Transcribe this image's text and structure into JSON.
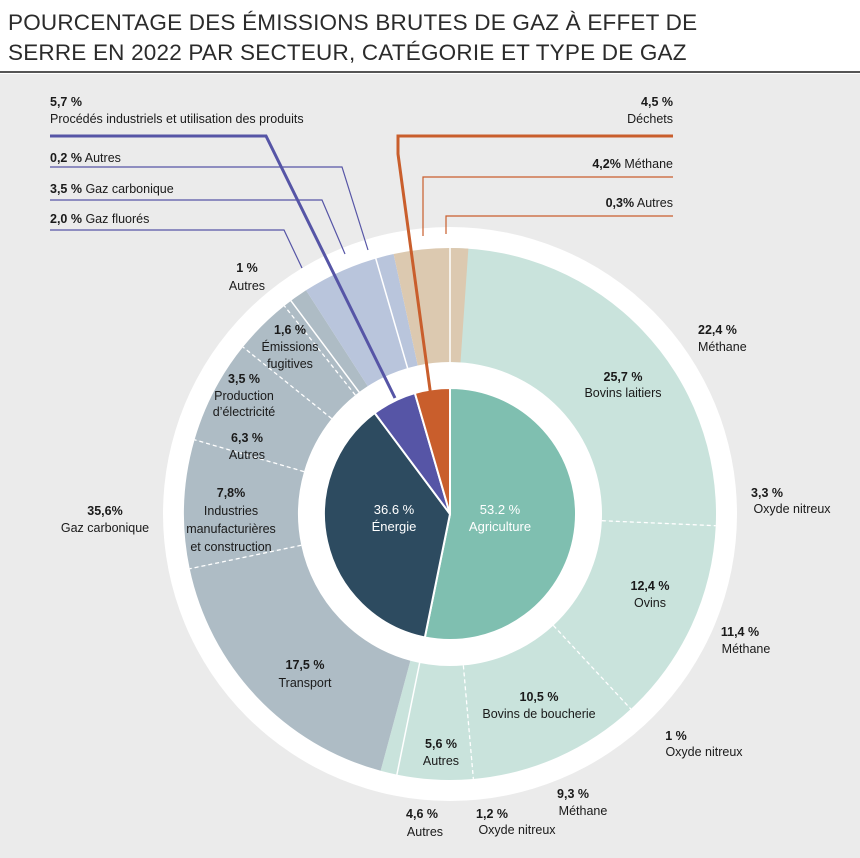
{
  "title_line1": "POURCENTAGE DES ÉMISSIONS BRUTES DE GAZ À EFFET DE",
  "title_line2": "SERRE EN 2022 PAR SECTEUR, CATÉGORIE ET TYPE DE GAZ",
  "colors": {
    "agriculture_inner": "#7fbfb0",
    "agriculture_middle": "#c9e3dc",
    "agriculture_outer": "#82c3b3",
    "energie_inner": "#2d4b60",
    "energie_middle": "#aebcc5",
    "energie_outer": "#2d4b60",
    "procedes": "#5655a6",
    "procedes_middle": "#b9c5dc",
    "dechets": "#c95e2c",
    "dechets_middle": "#dcc9b0"
  },
  "chart_data": {
    "type": "pie",
    "sectors": [
      {
        "name": "Agriculture",
        "value": 53.2,
        "label": "53.2 %"
      },
      {
        "name": "Énergie",
        "value": 36.6,
        "label": "36.6 %"
      },
      {
        "name": "Procédés industriels et utilisation des produits",
        "value": 5.7,
        "label": "5,7 %"
      },
      {
        "name": "Déchets",
        "value": 4.5,
        "label": "4,5 %"
      }
    ],
    "categories": [
      {
        "sector": "Agriculture",
        "name": "Bovins laitiers",
        "value": 25.7,
        "label": "25,7 %"
      },
      {
        "sector": "Agriculture",
        "name": "Ovins",
        "value": 12.4,
        "label": "12,4 %"
      },
      {
        "sector": "Agriculture",
        "name": "Bovins de boucherie",
        "value": 10.5,
        "label": "10,5 %"
      },
      {
        "sector": "Agriculture",
        "name": "Autres",
        "value": 5.6,
        "label": "5,6 %"
      },
      {
        "sector": "Énergie",
        "name": "Transport",
        "value": 17.5,
        "label": "17,5 %"
      },
      {
        "sector": "Énergie",
        "name": "Industries manufacturières et construction",
        "value": 7.8,
        "label": "7,8%"
      },
      {
        "sector": "Énergie",
        "name": "Autres",
        "value": 6.3,
        "label": "6,3 %"
      },
      {
        "sector": "Énergie",
        "name": "Production d’électricité",
        "value": 3.5,
        "label": "3,5 %"
      },
      {
        "sector": "Énergie",
        "name": "Émissions fugitives",
        "value": 1.6,
        "label": "1,6 %"
      },
      {
        "sector": "Procédés industriels et utilisation des produits",
        "name": "",
        "value": 5.7,
        "label": ""
      },
      {
        "sector": "Déchets",
        "name": "",
        "value": 4.5,
        "label": ""
      }
    ],
    "gases": [
      {
        "sector": "Agriculture",
        "name": "Méthane",
        "value": 22.4,
        "label": "22,4 %"
      },
      {
        "sector": "Agriculture",
        "name": "Oxyde nitreux",
        "value": 3.3,
        "label": "3,3 %"
      },
      {
        "sector": "Agriculture",
        "name": "Méthane",
        "value": 11.4,
        "label": "11,4 %"
      },
      {
        "sector": "Agriculture",
        "name": "Oxyde nitreux",
        "value": 1.0,
        "label": "1 %"
      },
      {
        "sector": "Agriculture",
        "name": "Méthane",
        "value": 9.3,
        "label": "9,3 %"
      },
      {
        "sector": "Agriculture",
        "name": "Oxyde nitreux",
        "value": 1.2,
        "label": "1,2 %"
      },
      {
        "sector": "Agriculture",
        "name": "Autres",
        "value": 4.6,
        "label": "4,6 %"
      },
      {
        "sector": "Énergie",
        "name": "Gaz carbonique",
        "value": 35.6,
        "label": "35,6%"
      },
      {
        "sector": "Énergie",
        "name": "Autres",
        "value": 1.0,
        "label": "1 %"
      },
      {
        "sector": "Procédés industriels et utilisation des produits",
        "name": "Gaz fluorés",
        "value": 2.0,
        "label": "2,0 %"
      },
      {
        "sector": "Procédés industriels et utilisation des produits",
        "name": "Gaz carbonique",
        "value": 3.5,
        "label": "3,5 %"
      },
      {
        "sector": "Procédés industriels et utilisation des produits",
        "name": "Autres",
        "value": 0.2,
        "label": "0,2 %"
      },
      {
        "sector": "Déchets",
        "name": "Méthane",
        "value": 4.2,
        "label": "4,2%"
      },
      {
        "sector": "Déchets",
        "name": "Autres",
        "value": 0.3,
        "label": "0,3%"
      }
    ]
  }
}
